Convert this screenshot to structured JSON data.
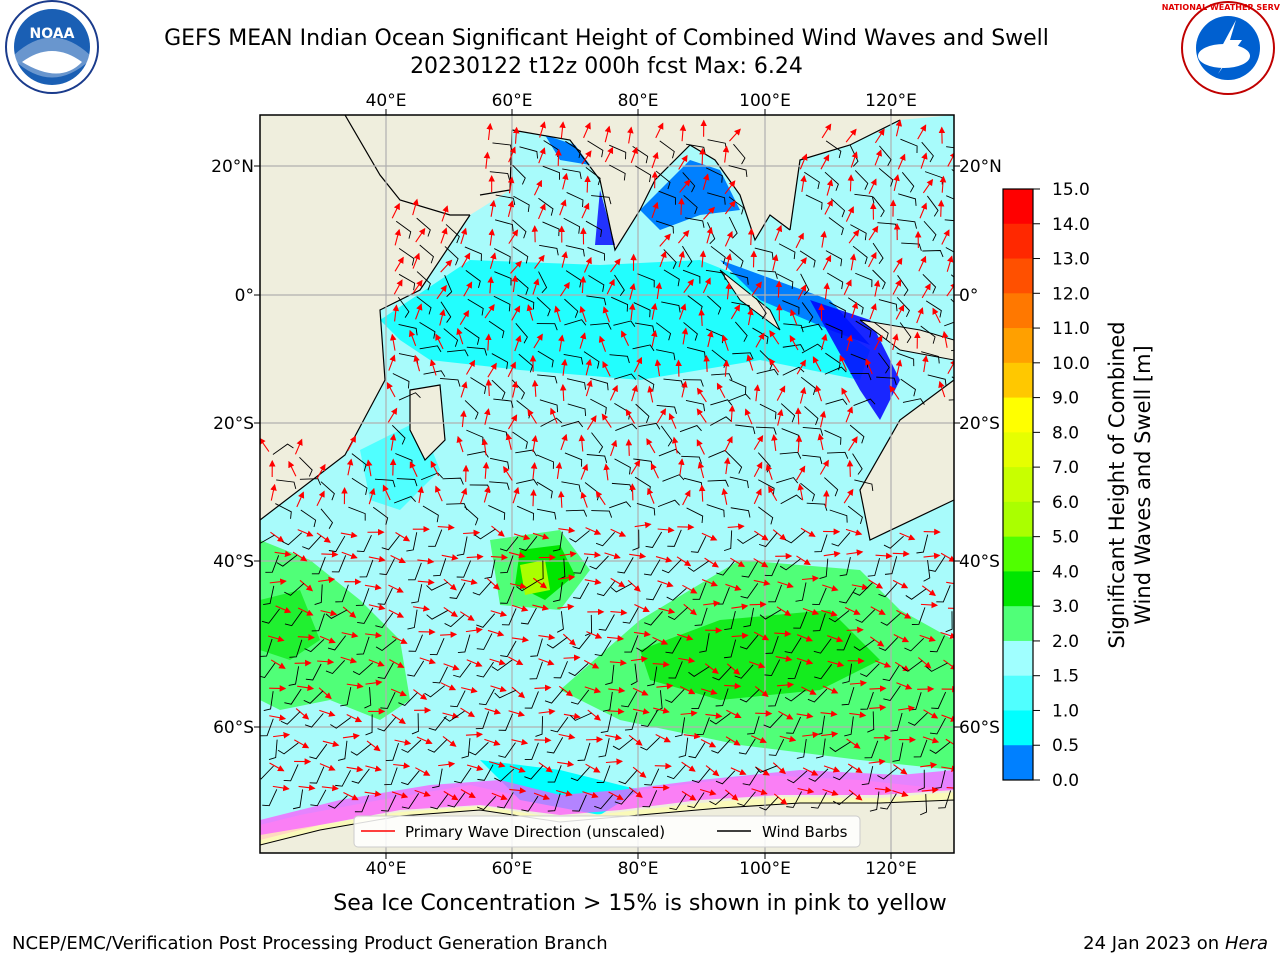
{
  "header": {
    "title_line1": "GEFS MEAN Indian Ocean Significant Height of Combined Wind Waves and Swell",
    "title_line2": "20230122 t12z 000h fcst   Max: 6.24"
  },
  "logos": {
    "left": {
      "icon": "noaa-logo",
      "text": "NOAA"
    },
    "right": {
      "icon": "nws-logo",
      "text": "NATIONAL WEATHER SERVICE"
    }
  },
  "map": {
    "lon_ticks_top": [
      "40°E",
      "60°E",
      "80°E",
      "100°E",
      "120°E"
    ],
    "lon_ticks_bottom": [
      "40°E",
      "60°E",
      "80°E",
      "100°E",
      "120°E"
    ],
    "lat_ticks_left": [
      "20°N",
      "0°",
      "20°S",
      "40°S",
      "60°S"
    ],
    "lat_ticks_right": [
      "20°N",
      "0°",
      "20°S",
      "40°S",
      "60°S"
    ],
    "legend": {
      "wave_direction": "Primary Wave Direction (unscaled)",
      "wind_barbs": "Wind Barbs"
    },
    "colors": {
      "land": "#efeedd",
      "ocean_default": "#a8fbfb",
      "wave_arrow": "#ff0000",
      "wind_barb": "#000000"
    }
  },
  "colorbar": {
    "label_line1": "Significant Height of Combined",
    "label_line2": "Wind Waves and Swell [m]",
    "ticks": [
      "15.0",
      "14.0",
      "13.0",
      "12.0",
      "11.0",
      "10.0",
      "9.0",
      "8.0",
      "7.0",
      "6.0",
      "5.0",
      "4.0",
      "3.0",
      "2.0",
      "1.5",
      "1.0",
      "0.5",
      "0.0"
    ],
    "colors_top_to_bottom": [
      "#ff0000",
      "#ff2800",
      "#ff5000",
      "#ff7800",
      "#ffa000",
      "#ffc800",
      "#ffff00",
      "#e6ff00",
      "#c8ff00",
      "#aaff00",
      "#50ff00",
      "#00e600",
      "#50ff78",
      "#a0ffff",
      "#50ffff",
      "#00ffff",
      "#0080ff",
      "#0000ff"
    ]
  },
  "subtitle": "Sea Ice Concentration > 15% is shown in pink to yellow",
  "footer": {
    "left": "NCEP/EMC/Verification Post Processing Product Generation Branch",
    "right_prefix": "24 Jan 2023 on ",
    "right_host": "Hera"
  }
}
